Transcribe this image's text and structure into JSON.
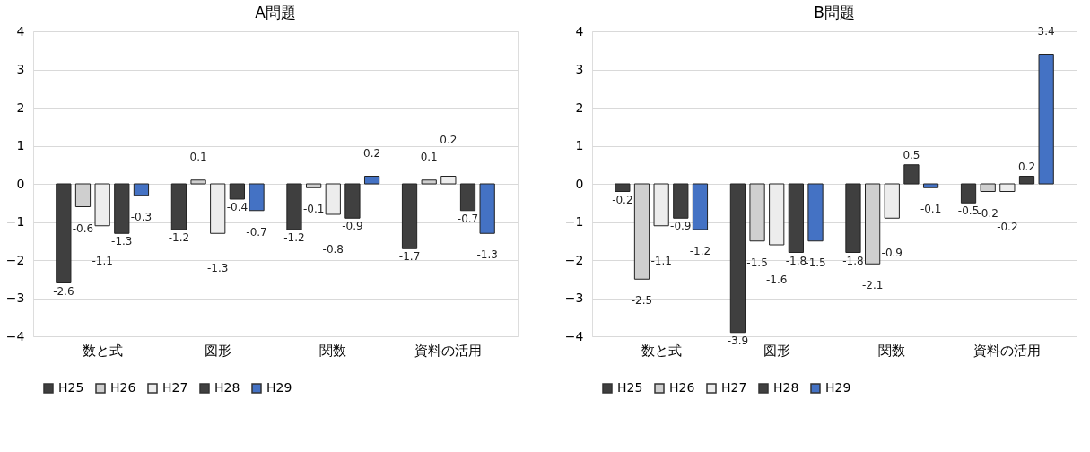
{
  "chart_data": [
    {
      "type": "bar",
      "title": "A問題",
      "categories": [
        "数と式",
        "図形",
        "関数",
        "資料の活用"
      ],
      "series": [
        {
          "name": "H25",
          "color": "#3f3f3f",
          "values": [
            -2.6,
            -1.2,
            -1.2,
            -1.7
          ]
        },
        {
          "name": "H26",
          "color": "#cfcfcf",
          "values": [
            -0.6,
            0.1,
            -0.1,
            0.1
          ]
        },
        {
          "name": "H27",
          "color": "#ededed",
          "values": [
            -1.1,
            -1.3,
            -0.8,
            0.2
          ]
        },
        {
          "name": "H28",
          "color": "#404040",
          "values": [
            -1.3,
            -0.4,
            -0.9,
            -0.7
          ]
        },
        {
          "name": "H29",
          "color": "#4472c4",
          "values": [
            -0.3,
            -0.7,
            0.2,
            -1.3
          ]
        }
      ],
      "ylim": [
        -4,
        4
      ],
      "yticks": [
        -4,
        -3,
        -2,
        -1,
        0,
        1,
        2,
        3,
        4
      ],
      "grid": "y",
      "legend": "bottom",
      "data_labels": true
    },
    {
      "type": "bar",
      "title": "B問題",
      "categories": [
        "数と式",
        "図形",
        "関数",
        "資料の活用"
      ],
      "series": [
        {
          "name": "H25",
          "color": "#3f3f3f",
          "values": [
            -0.2,
            -3.9,
            -1.8,
            -0.5
          ]
        },
        {
          "name": "H26",
          "color": "#cfcfcf",
          "values": [
            -2.5,
            -1.5,
            -2.1,
            -0.2
          ]
        },
        {
          "name": "H27",
          "color": "#ededed",
          "values": [
            -1.1,
            -1.6,
            -0.9,
            -0.2
          ]
        },
        {
          "name": "H28",
          "color": "#404040",
          "values": [
            -0.9,
            -1.8,
            0.5,
            0.2
          ]
        },
        {
          "name": "H29",
          "color": "#4472c4",
          "values": [
            -1.2,
            -1.5,
            -0.1,
            3.4
          ]
        }
      ],
      "ylim": [
        -4,
        4
      ],
      "yticks": [
        -4,
        -3,
        -2,
        -1,
        0,
        1,
        2,
        3,
        4
      ],
      "grid": "y",
      "legend": "bottom",
      "data_labels": true
    }
  ]
}
